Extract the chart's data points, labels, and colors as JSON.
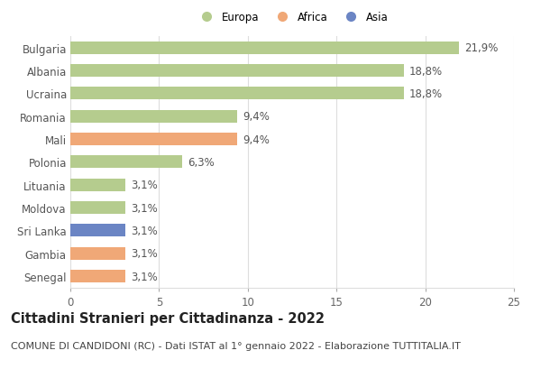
{
  "categories": [
    "Bulgaria",
    "Albania",
    "Ucraina",
    "Romania",
    "Mali",
    "Polonia",
    "Lituania",
    "Moldova",
    "Sri Lanka",
    "Gambia",
    "Senegal"
  ],
  "values": [
    21.9,
    18.8,
    18.8,
    9.4,
    9.4,
    6.3,
    3.1,
    3.1,
    3.1,
    3.1,
    3.1
  ],
  "labels": [
    "21,9%",
    "18,8%",
    "18,8%",
    "9,4%",
    "9,4%",
    "6,3%",
    "3,1%",
    "3,1%",
    "3,1%",
    "3,1%",
    "3,1%"
  ],
  "continents": [
    "Europa",
    "Europa",
    "Europa",
    "Europa",
    "Africa",
    "Europa",
    "Europa",
    "Europa",
    "Asia",
    "Africa",
    "Africa"
  ],
  "colors": {
    "Europa": "#b5cc8e",
    "Africa": "#f0a877",
    "Asia": "#6b85c4"
  },
  "legend_order": [
    "Europa",
    "Africa",
    "Asia"
  ],
  "xlim": [
    0,
    25
  ],
  "xticks": [
    0,
    5,
    10,
    15,
    20,
    25
  ],
  "title": "Cittadini Stranieri per Cittadinanza - 2022",
  "subtitle": "COMUNE DI CANDIDONI (RC) - Dati ISTAT al 1° gennaio 2022 - Elaborazione TUTTITALIA.IT",
  "background_color": "#ffffff",
  "grid_color": "#dddddd",
  "bar_height": 0.55,
  "label_fontsize": 8.5,
  "tick_fontsize": 8.5,
  "title_fontsize": 10.5,
  "subtitle_fontsize": 8.0
}
